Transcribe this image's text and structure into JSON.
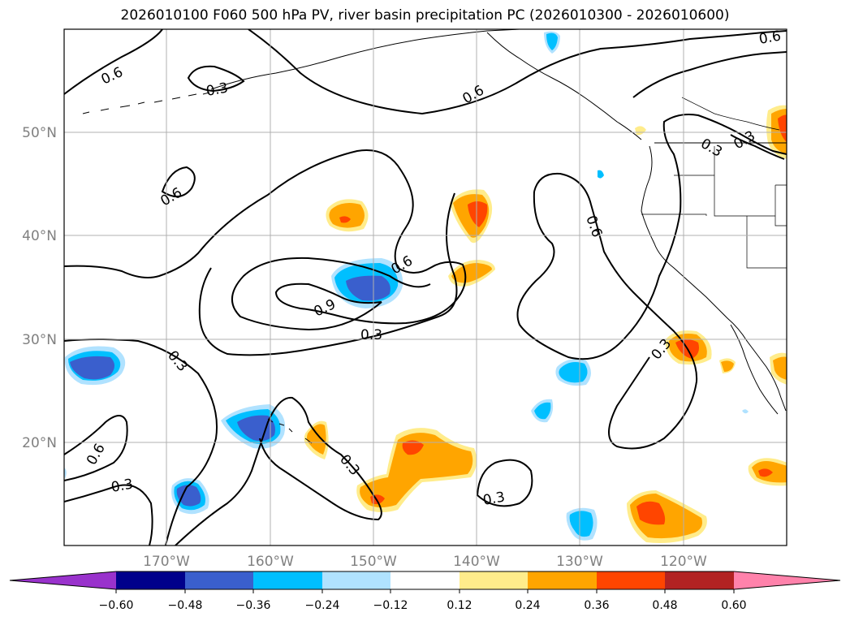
{
  "title": "2026010100 F060 500 hPa PV, river basin precipitation PC (2026010300 - 2026010600)",
  "map": {
    "lat_labels": [
      "50°N",
      "40°N",
      "30°N",
      "20°N"
    ],
    "lon_labels": [
      "170°W",
      "160°W",
      "150°W",
      "140°W",
      "130°W",
      "120°W"
    ],
    "contour_labels": [
      "0.6",
      "0.3",
      "0.6",
      "0.6",
      "0.6",
      "0.3",
      "0.3",
      "0.6",
      "0.6",
      "0.9",
      "0.3",
      "0.3",
      "0.3",
      "0.6",
      "0.3",
      "0.3",
      "0.3"
    ],
    "colors": {
      "label_gray": "#808080",
      "grid": "#b0b0b0",
      "contour": "#000000"
    }
  },
  "colorbar": {
    "tick_labels": [
      "−0.60",
      "−0.48",
      "−0.36",
      "−0.24",
      "−0.12",
      "0.12",
      "0.24",
      "0.36",
      "0.48",
      "0.60"
    ],
    "colors": [
      "#9932cc",
      "#00008b",
      "#3a5fcd",
      "#00bfff",
      "#b0e2ff",
      "#ffffff",
      "#ffec8b",
      "#ffa500",
      "#ff4500",
      "#b22222",
      "#ff82ab"
    ]
  }
}
